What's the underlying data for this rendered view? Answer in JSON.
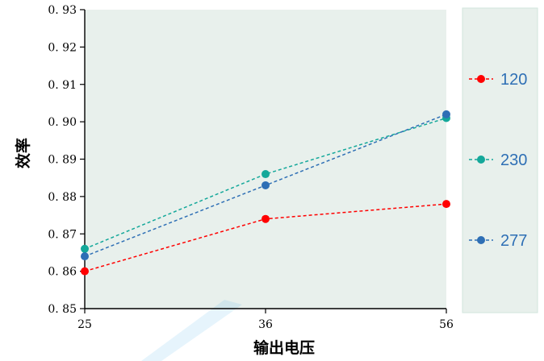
{
  "chart_data": {
    "type": "line",
    "x": [
      25,
      36,
      56
    ],
    "xticks": [
      "25",
      "36",
      "56"
    ],
    "yticks": [
      "0.85",
      "0.86",
      "0.87",
      "0.88",
      "0.89",
      "0.90",
      "0.91",
      "0.92",
      "0.93"
    ],
    "ylim": [
      0.85,
      0.93
    ],
    "xlabel": "输出电压",
    "ylabel": "效率",
    "legend_position": "right",
    "background": "#e8f0ec",
    "series": [
      {
        "name": "120",
        "color": "#ff0000",
        "values": [
          0.86,
          0.874,
          0.878
        ]
      },
      {
        "name": "230",
        "color": "#14a89a",
        "values": [
          0.866,
          0.886,
          0.901
        ]
      },
      {
        "name": "277",
        "color": "#2e6fb5",
        "values": [
          0.864,
          0.883,
          0.902
        ]
      }
    ]
  }
}
